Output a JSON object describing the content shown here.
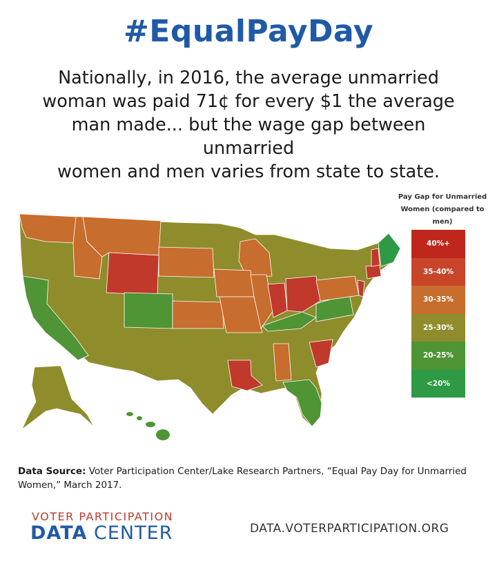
{
  "title": "#EqualPayDay",
  "subtitle_lines": [
    "Nationally, in 2016, the average unmarried",
    "woman was paid 71¢ for every $1 the average",
    "man made... but the wage gap between unmarried",
    "women and men varies from state to state."
  ],
  "legend": {
    "title_lines": [
      "Pay Gap for Unmarried",
      "Women (compared to",
      "men)"
    ],
    "items": [
      {
        "label": "40%+",
        "color": "#c0271c"
      },
      {
        "label": "35-40%",
        "color": "#c8452a"
      },
      {
        "label": "30-35%",
        "color": "#c76d2e"
      },
      {
        "label": "25-30%",
        "color": "#8f8c2c"
      },
      {
        "label": "20-25%",
        "color": "#4f9435"
      },
      {
        "label": "<20%",
        "color": "#2f9a45"
      }
    ]
  },
  "map_colors": {
    "base": "#8f8c2c",
    "orange": "#c76d2e",
    "red": "#c0392b",
    "green": "#4f9435",
    "bright_green": "#2f9a45"
  },
  "source": {
    "label": "Data Source:",
    "text": " Voter Participation Center/Lake Research Partners, “Equal Pay Day for Unmarried Women,” March 2017."
  },
  "branding": {
    "top": "VOTER PARTICIPATION",
    "bottom_bold": "DATA",
    "bottom_rest": " CENTER",
    "website": "DATA.VOTERPARTICIPATION.ORG"
  }
}
